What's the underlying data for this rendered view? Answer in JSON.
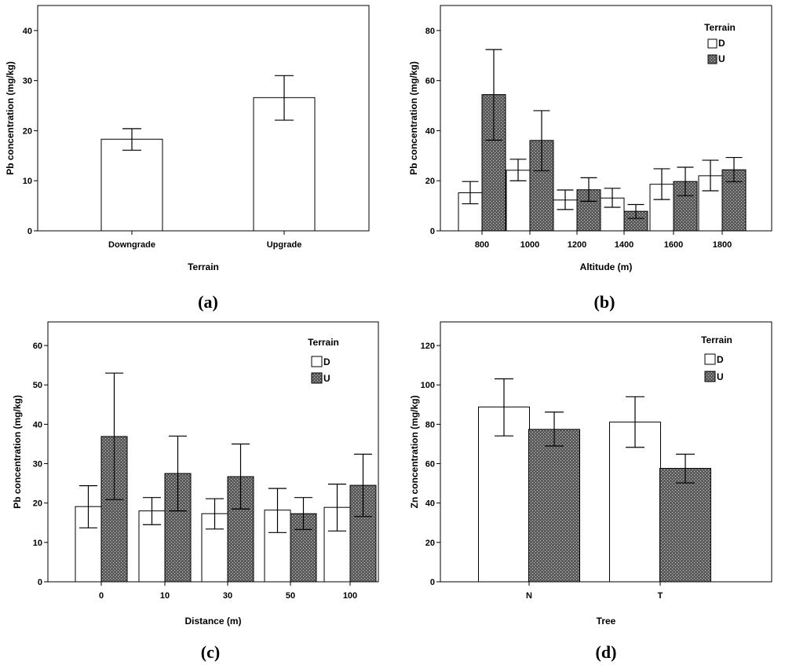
{
  "colors": {
    "D": "#ffffff",
    "U": "#5c5c5c",
    "stroke": "#000000"
  },
  "chart_data": [
    {
      "id": "a",
      "type": "bar",
      "panel_label": "(a)",
      "categories": [
        "Downgrade",
        "Upgrade"
      ],
      "series": [
        {
          "values": [
            18.3,
            26.6
          ],
          "errors": [
            [
              16.1,
              20.4
            ],
            [
              22.1,
              31.0
            ]
          ]
        }
      ],
      "xlabel": "Terrain",
      "ylabel": "Pb concentration (mg/kg)",
      "ylim": [
        0,
        45
      ],
      "yticks": [
        0,
        10,
        20,
        30,
        40
      ],
      "legend": null
    },
    {
      "id": "b",
      "type": "bar",
      "panel_label": "(b)",
      "categories": [
        "800",
        "1000",
        "1200",
        "1400",
        "1600",
        "1800"
      ],
      "series": [
        {
          "name": "D",
          "values": [
            15.2,
            24.2,
            12.3,
            13.1,
            18.6,
            22.0
          ],
          "errors": [
            [
              10.8,
              19.7
            ],
            [
              20.0,
              28.6
            ],
            [
              8.5,
              16.3
            ],
            [
              9.4,
              17.0
            ],
            [
              12.5,
              24.8
            ],
            [
              16.0,
              28.2
            ]
          ]
        },
        {
          "name": "U",
          "values": [
            54.4,
            36.1,
            16.4,
            7.8,
            19.7,
            24.4
          ],
          "errors": [
            [
              36.2,
              72.4
            ],
            [
              24.0,
              48.0
            ],
            [
              11.8,
              21.2
            ],
            [
              5.0,
              10.5
            ],
            [
              14.0,
              25.4
            ],
            [
              19.6,
              29.3
            ]
          ]
        }
      ],
      "xlabel": "Altitude (m)",
      "ylabel": "Pb concentration (mg/kg)",
      "ylim": [
        0,
        90
      ],
      "yticks": [
        0,
        20,
        40,
        60,
        80
      ],
      "legend": {
        "title": "Terrain",
        "items": [
          "D",
          "U"
        ],
        "position": "top-right"
      }
    },
    {
      "id": "c",
      "type": "bar",
      "panel_label": "(c)",
      "categories": [
        "0",
        "10",
        "30",
        "50",
        "100"
      ],
      "series": [
        {
          "name": "D",
          "values": [
            19.1,
            18.0,
            17.3,
            18.2,
            18.9
          ],
          "errors": [
            [
              13.7,
              24.4
            ],
            [
              14.5,
              21.4
            ],
            [
              13.4,
              21.1
            ],
            [
              12.5,
              23.7
            ],
            [
              12.9,
              24.8
            ]
          ]
        },
        {
          "name": "U",
          "values": [
            36.9,
            27.5,
            26.7,
            17.3,
            24.5
          ],
          "errors": [
            [
              20.9,
              53.0
            ],
            [
              18.0,
              37.0
            ],
            [
              18.5,
              35.0
            ],
            [
              13.3,
              21.4
            ],
            [
              16.6,
              32.4
            ]
          ]
        }
      ],
      "xlabel": "Distance (m)",
      "ylabel": "Pb concentration (mg/kg)",
      "ylim": [
        0,
        66
      ],
      "yticks": [
        0,
        10,
        20,
        30,
        40,
        50,
        60
      ],
      "legend": {
        "title": "Terrain",
        "items": [
          "D",
          "U"
        ],
        "position": "top-right"
      }
    },
    {
      "id": "d",
      "type": "bar",
      "panel_label": "(d)",
      "categories": [
        "N",
        "T"
      ],
      "series": [
        {
          "name": "D",
          "values": [
            88.8,
            81.1
          ],
          "errors": [
            [
              74.1,
              103.1
            ],
            [
              68.3,
              94.0
            ]
          ]
        },
        {
          "name": "U",
          "values": [
            77.4,
            57.6
          ],
          "errors": [
            [
              69.0,
              86.2
            ],
            [
              50.2,
              64.8
            ]
          ]
        }
      ],
      "xlabel": "Tree",
      "ylabel": "Zn concentration (mg/kg)",
      "ylim": [
        0,
        132
      ],
      "yticks": [
        0,
        20,
        40,
        60,
        80,
        100,
        120
      ],
      "legend": {
        "title": "Terrain",
        "items": [
          "D",
          "U"
        ],
        "position": "top-right"
      }
    }
  ]
}
